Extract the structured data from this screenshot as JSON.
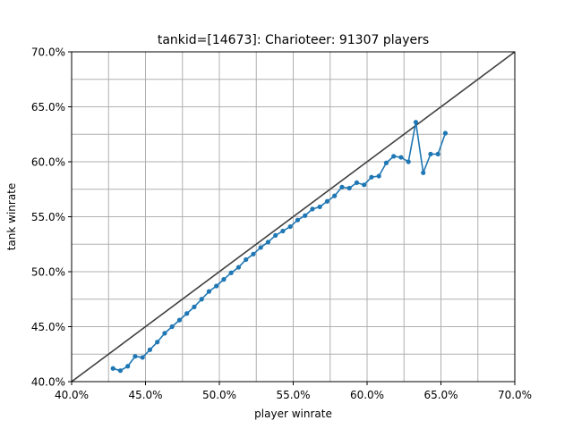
{
  "chart_data": {
    "type": "line",
    "title": "tankid=[14673]: Charioteer: 91307 players",
    "xlabel": "player winrate",
    "ylabel": "tank winrate",
    "xlim": [
      0.4,
      0.7
    ],
    "ylim": [
      0.4,
      0.7
    ],
    "x_ticks": [
      0.4,
      0.45,
      0.5,
      0.55,
      0.6,
      0.65,
      0.7
    ],
    "x_tick_labels": [
      "40.0%",
      "45.0%",
      "50.0%",
      "55.0%",
      "60.0%",
      "65.0%",
      "70.0%"
    ],
    "y_ticks": [
      0.4,
      0.45,
      0.5,
      0.55,
      0.6,
      0.65,
      0.7
    ],
    "y_tick_labels": [
      "40.0%",
      "45.0%",
      "50.0%",
      "55.0%",
      "60.0%",
      "65.0%",
      "70.0%"
    ],
    "grid": true,
    "grid_step": 0.025,
    "colors": {
      "series": "#1f77b4",
      "reference": "#404040",
      "grid": "#b0b0b0"
    },
    "reference_line": {
      "x": [
        0.4,
        0.7
      ],
      "y": [
        0.4,
        0.7
      ]
    },
    "series": [
      {
        "x": [
          0.428,
          0.433,
          0.438,
          0.443,
          0.448,
          0.453,
          0.458,
          0.463,
          0.468,
          0.473,
          0.478,
          0.483,
          0.488,
          0.493,
          0.498,
          0.503,
          0.508,
          0.513,
          0.518,
          0.523,
          0.528,
          0.533,
          0.538,
          0.543,
          0.548,
          0.553,
          0.558,
          0.563,
          0.568,
          0.573,
          0.578,
          0.583,
          0.588,
          0.593,
          0.598,
          0.603,
          0.608,
          0.613,
          0.618,
          0.623,
          0.628,
          0.633,
          0.638,
          0.643,
          0.648,
          0.653
        ],
        "y": [
          0.412,
          0.41,
          0.414,
          0.423,
          0.422,
          0.429,
          0.436,
          0.444,
          0.45,
          0.456,
          0.462,
          0.468,
          0.475,
          0.482,
          0.487,
          0.493,
          0.499,
          0.504,
          0.511,
          0.516,
          0.522,
          0.527,
          0.533,
          0.537,
          0.541,
          0.547,
          0.551,
          0.557,
          0.559,
          0.564,
          0.569,
          0.577,
          0.576,
          0.581,
          0.579,
          0.586,
          0.587,
          0.599,
          0.605,
          0.604,
          0.6,
          0.636,
          0.59,
          0.607,
          0.607,
          0.626
        ]
      }
    ]
  }
}
